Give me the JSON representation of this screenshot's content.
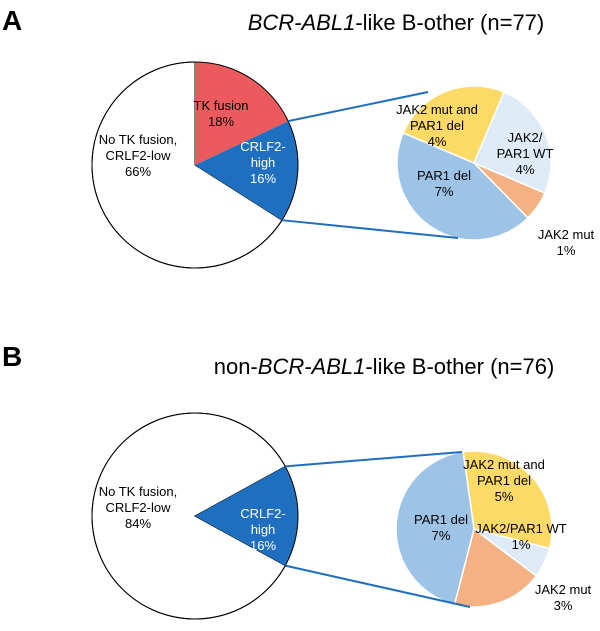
{
  "chart_data": [
    {
      "panel": "A",
      "type": "pie",
      "title_parts": [
        {
          "text": "BCR-ABL1",
          "italic": true
        },
        {
          "text": "-like B-other (n=77)",
          "italic": false
        }
      ],
      "main_pie": {
        "slices": [
          {
            "label": "TK fusion",
            "pct_text": "18%",
            "value": 18,
            "color": "#ec5a5d"
          },
          {
            "label": "CRLF2-high",
            "label_lines": [
              "CRLF2-",
              "high"
            ],
            "pct_text": "16%",
            "value": 16,
            "color": "#1f6fc0"
          },
          {
            "label": "No TK fusion, CRLF2-low",
            "label_lines": [
              "No TK fusion,",
              "CRLF2-low"
            ],
            "pct_text": "66%",
            "value": 66,
            "color": "#ffffff"
          }
        ]
      },
      "sub_pie": {
        "parent": "CRLF2-high",
        "slices": [
          {
            "label": "JAK2 mut and PAR1 del",
            "label_lines": [
              "JAK2 mut and",
              "PAR1 del"
            ],
            "pct_text": "4%",
            "value": 4,
            "color": "#fdd966"
          },
          {
            "label": "JAK2/ PAR1 WT",
            "label_lines": [
              "JAK2/",
              "PAR1 WT"
            ],
            "pct_text": "4%",
            "value": 4,
            "color": "#deebf7"
          },
          {
            "label": "JAK2 mut",
            "label_lines": [
              "JAK2 mut"
            ],
            "pct_text": "1%",
            "value": 1,
            "color": "#f4b183"
          },
          {
            "label": "PAR1 del",
            "label_lines": [
              "PAR1 del"
            ],
            "pct_text": "7%",
            "value": 7,
            "color": "#9dc3e6"
          }
        ]
      }
    },
    {
      "panel": "B",
      "type": "pie",
      "title_parts": [
        {
          "text": "non-",
          "italic": false
        },
        {
          "text": "BCR-ABL1",
          "italic": true
        },
        {
          "text": "-like B-other (n=76)",
          "italic": false
        }
      ],
      "main_pie": {
        "slices": [
          {
            "label": "CRLF2-high",
            "label_lines": [
              "CRLF2-",
              "high"
            ],
            "pct_text": "16%",
            "value": 16,
            "color": "#1f6fc0"
          },
          {
            "label": "No TK fusion, CRLF2-low",
            "label_lines": [
              "No TK fusion,",
              "CRLF2-low"
            ],
            "pct_text": "84%",
            "value": 84,
            "color": "#ffffff"
          }
        ]
      },
      "sub_pie": {
        "parent": "CRLF2-high",
        "slices": [
          {
            "label": "JAK2 mut and PAR1 del",
            "label_lines": [
              "JAK2 mut and",
              "PAR1 del"
            ],
            "pct_text": "5%",
            "value": 5,
            "color": "#fdd966"
          },
          {
            "label": "JAK2/PAR1 WT",
            "label_lines": [
              "JAK2/PAR1 WT"
            ],
            "pct_text": "1%",
            "value": 1,
            "color": "#deebf7"
          },
          {
            "label": "JAK2 mut",
            "label_lines": [
              "JAK2 mut"
            ],
            "pct_text": "3%",
            "value": 3,
            "color": "#f4b183"
          },
          {
            "label": "PAR1 del",
            "label_lines": [
              "PAR1 del"
            ],
            "pct_text": "7%",
            "value": 7,
            "color": "#9dc3e6"
          }
        ]
      }
    }
  ],
  "connector_color": "#1f6fc0"
}
